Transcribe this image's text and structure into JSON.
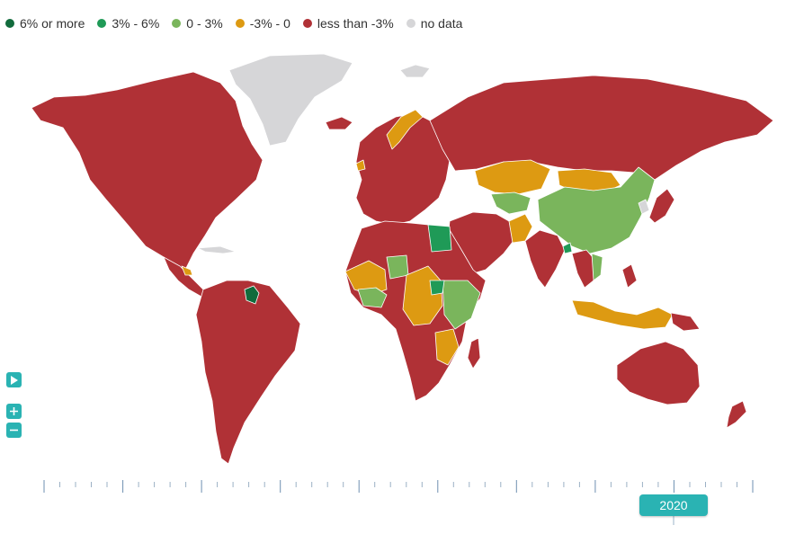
{
  "legend": {
    "items": [
      {
        "label": "6% or more",
        "color": "#116b3c"
      },
      {
        "label": "3% - 6%",
        "color": "#1f9a57"
      },
      {
        "label": "0 - 3%",
        "color": "#7ab55c"
      },
      {
        "label": "-3% - 0",
        "color": "#dd9a12"
      },
      {
        "label": "less than -3%",
        "color": "#b03136"
      },
      {
        "label": "no data",
        "color": "#d6d6d8"
      }
    ]
  },
  "map": {
    "colors": {
      "six_plus": "#116b3c",
      "three_six": "#1f9a57",
      "zero_three": "#7ab55c",
      "neg_three_zero": "#dd9a12",
      "less_neg_three": "#b03136",
      "no_data": "#d6d6d8",
      "border": "#ffffff"
    }
  },
  "controls": {
    "play_icon": "play-icon",
    "zoom_in_icon": "plus-icon",
    "zoom_out_icon": "minus-icon",
    "accent": "#2ab3b3"
  },
  "timeline": {
    "current_year": "2020"
  }
}
